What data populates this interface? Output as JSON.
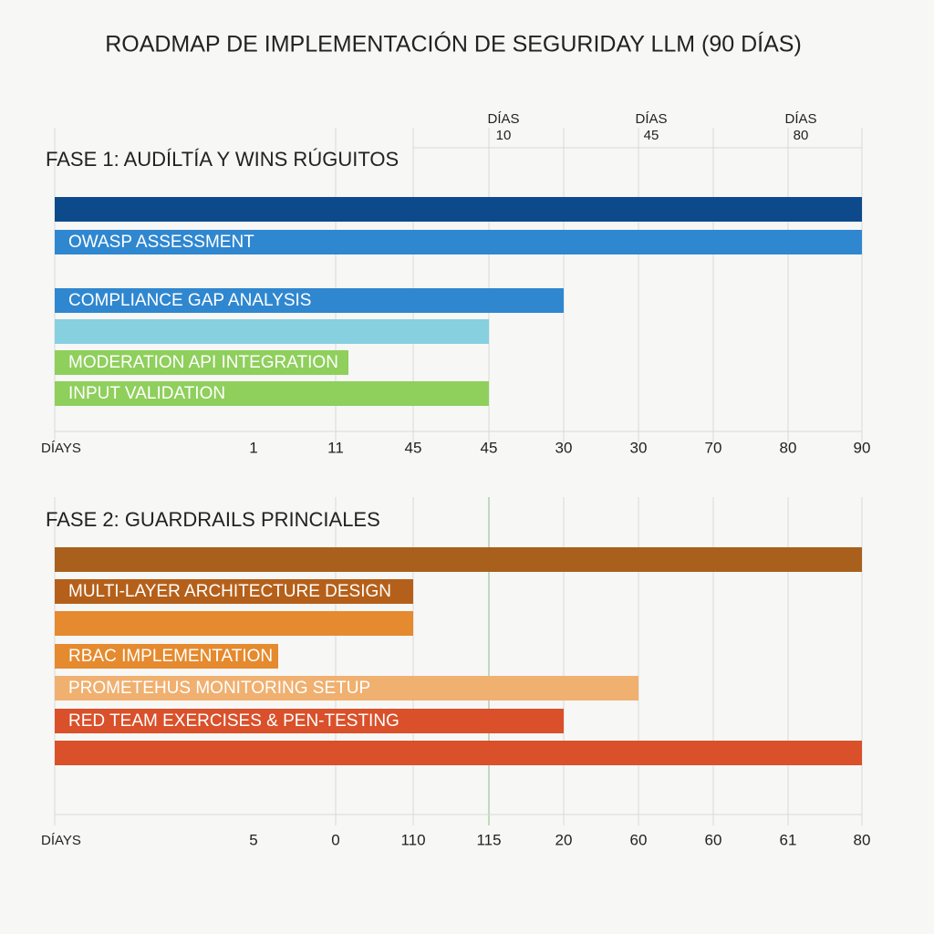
{
  "title": "ROADMAP DE IMPLEMENTACIÓN DE SEGURIDAY LLM (90 DÍAS)",
  "header": [
    {
      "line1": "DÍAS",
      "line2": "10"
    },
    {
      "line1": "DÍAS",
      "line2": "45"
    },
    {
      "line1": "DÍAS",
      "line2": "80"
    }
  ],
  "panels": [
    {
      "title": "FASE 1: AUDÍLTÍA Y WINS RÚGUITOS",
      "bars": [
        "OWASP ASSESSMENT",
        "COMPLIANCE GAP ANALYSIS",
        "MODERATION API INTEGRATION",
        "INPUT VALIDATION"
      ],
      "axis_title": "DÍAYS",
      "axis_labels": [
        "1",
        "11",
        "45",
        "45",
        "30",
        "30",
        "70",
        "80",
        "90"
      ]
    },
    {
      "title": "FASE 2: GUARDRAILS PRINCIALES",
      "bars": [
        "MULTI-LAYER ARCHITECTURE DESIGN",
        "RBAC IMPLEMENTATION",
        "PROMETEHUS MONITORING SETUP",
        "RED TEAM EXERCISES & PEN-TESTING"
      ],
      "axis_title": "DÍAYS",
      "axis_labels": [
        "5",
        "0",
        "110",
        "115",
        "20",
        "60",
        "60",
        "61",
        "80"
      ]
    }
  ]
}
